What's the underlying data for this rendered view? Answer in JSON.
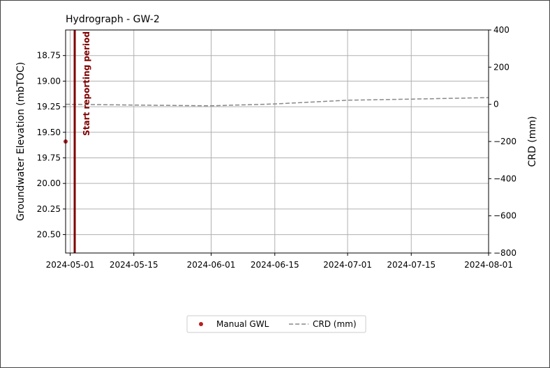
{
  "chart_data": {
    "type": "line",
    "title": "Hydrograph - GW-2",
    "y_label": "Groundwater Elevation (mbTOC)",
    "y2_label": "CRD (mm)",
    "xlim": [
      "2024-04-30",
      "2024-08-01"
    ],
    "xticks": [
      "2024-05-01",
      "2024-05-15",
      "2024-06-01",
      "2024-06-15",
      "2024-07-01",
      "2024-07-15",
      "2024-08-01"
    ],
    "ylim": [
      18.5,
      20.68
    ],
    "y_inverted": true,
    "yticks": [
      18.75,
      {
        "value": 19,
        "label": "19.00"
      },
      19.25,
      {
        "value": 19.5,
        "label": "19.50"
      },
      19.75,
      {
        "value": 20,
        "label": "20.00"
      },
      20.25,
      {
        "value": 20.5,
        "label": "20.50"
      }
    ],
    "y2lim": [
      -800,
      400
    ],
    "y2ticks": [
      400,
      200,
      0,
      {
        "value": -200,
        "label": "−200"
      },
      {
        "value": -400,
        "label": "−400"
      },
      {
        "value": -600,
        "label": "−600"
      },
      {
        "value": -800,
        "label": "−800"
      }
    ],
    "grid": true,
    "legend": "bottom",
    "series": [
      {
        "name": "Manual GWL",
        "color": "#b22222",
        "style": "marker",
        "x": [
          "2024-04-30"
        ],
        "values": [
          19.59
        ]
      },
      {
        "name": "CRD (mm)",
        "color": "#888888",
        "style": "dashed",
        "axis": "y2",
        "x": [
          "2024-04-30",
          "2024-05-01",
          "2024-05-15",
          "2024-06-01",
          "2024-06-15",
          "2024-07-01",
          "2024-07-15",
          "2024-08-01"
        ],
        "values": [
          0,
          0,
          -4,
          -8,
          2,
          22,
          28,
          36
        ]
      }
    ],
    "annotations": [
      {
        "text": "Start reporting period",
        "x": "2024-05-02",
        "color": "#800000"
      }
    ]
  }
}
